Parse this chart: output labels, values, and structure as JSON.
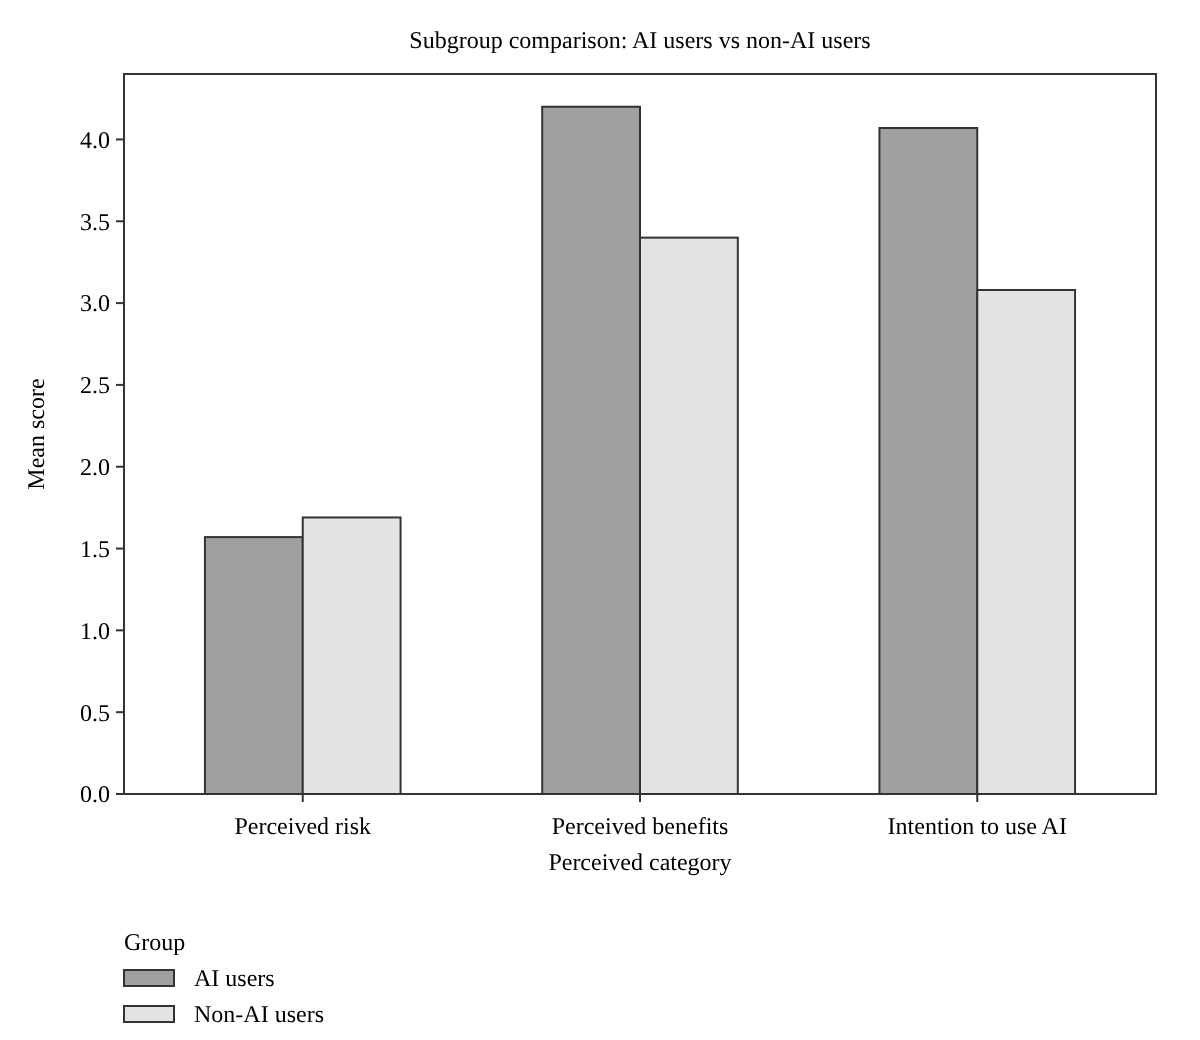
{
  "chart_data": {
    "type": "bar",
    "title": "Subgroup comparison: AI users vs non-AI users",
    "xlabel": "Perceived category",
    "ylabel": "Mean score",
    "legend_title": "Group",
    "categories": [
      "Perceived risk",
      "Perceived benefits",
      "Intention to use AI"
    ],
    "series": [
      {
        "name": "AI users",
        "color": "#a0a0a0",
        "values": [
          1.57,
          4.2,
          4.07
        ]
      },
      {
        "name": "Non-AI users",
        "color": "#e2e3e2",
        "values": [
          1.69,
          3.4,
          3.08
        ]
      }
    ],
    "ylim": [
      0,
      4.4
    ],
    "yticks": [
      {
        "value": 0,
        "label": "0.0"
      },
      {
        "value": 0.5,
        "label": "0.5"
      },
      {
        "value": 1,
        "label": "1.0"
      },
      {
        "value": 1.5,
        "label": "1.5"
      },
      {
        "value": 2,
        "label": "2.0"
      },
      {
        "value": 2.5,
        "label": "2.5"
      },
      {
        "value": 3,
        "label": "3.0"
      },
      {
        "value": 3.5,
        "label": "3.5"
      },
      {
        "value": 4,
        "label": "4.0"
      }
    ],
    "grid": false,
    "legend": "bottom left"
  }
}
